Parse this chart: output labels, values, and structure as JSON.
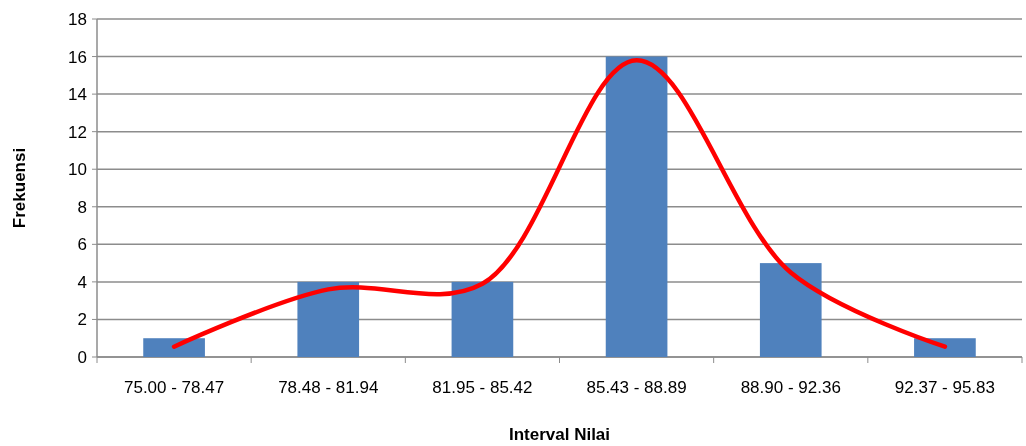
{
  "chart_data": {
    "type": "bar",
    "xlabel": "Interval Nilai",
    "ylabel": "Frekuensi",
    "categories": [
      "75.00 - 78.47",
      "78.48 - 81.94",
      "81.95 - 85.42",
      "85.43 - 88.89",
      "88.90 - 92.36",
      "92.37 - 95.83"
    ],
    "series": [
      {
        "color": "#4f81bd",
        "values": [
          1,
          4,
          4,
          16,
          5,
          1
        ]
      },
      {
        "type": "line",
        "color": "#ff0000",
        "values": [
          0.55,
          3.6,
          3.9,
          15.8,
          4.5,
          0.55
        ]
      }
    ],
    "ylim": [
      0,
      18
    ],
    "yticks": [
      0,
      2,
      4,
      6,
      8,
      10,
      12,
      14,
      16,
      18
    ],
    "grid": "y",
    "marker": "none",
    "line_style": "solid"
  }
}
